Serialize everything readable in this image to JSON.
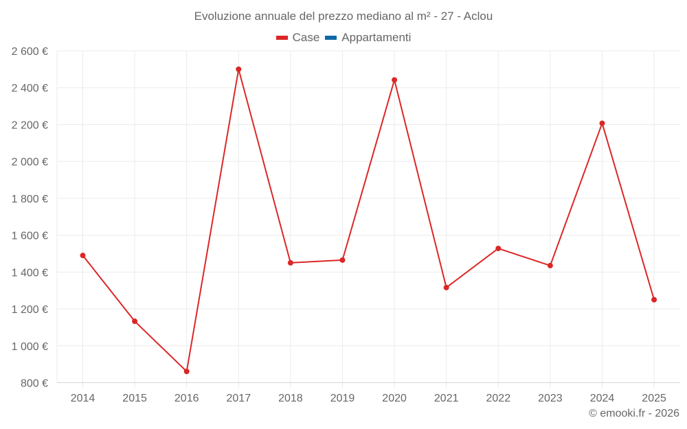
{
  "chart": {
    "title": "Evoluzione annuale del prezzo mediano al m² - 27 - Aclou",
    "credit": "© emooki.fr - 2026",
    "legend": [
      {
        "label": "Case",
        "color": "#dc2626"
      },
      {
        "label": "Appartamenti",
        "color": "#0f69a8"
      }
    ],
    "y_ticks": [
      "800 €",
      "1 000 €",
      "1 200 €",
      "1 400 €",
      "1 600 €",
      "1 800 €",
      "2 000 €",
      "2 200 €",
      "2 400 €",
      "2 600 €"
    ]
  },
  "chart_data": {
    "type": "line",
    "title": "Evoluzione annuale del prezzo mediano al m² - 27 - Aclou",
    "xlabel": "",
    "ylabel": "",
    "categories": [
      "2014",
      "2015",
      "2016",
      "2017",
      "2018",
      "2019",
      "2020",
      "2021",
      "2022",
      "2023",
      "2024",
      "2025"
    ],
    "series": [
      {
        "name": "Case",
        "color": "#dc2626",
        "values": [
          1490,
          1133,
          861,
          2500,
          1450,
          1465,
          2442,
          1316,
          1528,
          1435,
          2207,
          1250
        ]
      },
      {
        "name": "Appartamenti",
        "color": "#0f69a8",
        "values": []
      }
    ],
    "ylim": [
      800,
      2600
    ],
    "y_tick_step": 200,
    "y_tick_format": "€ with thin-space thousands",
    "grid": true,
    "legend_position": "top-center",
    "annotations": [
      "© emooki.fr - 2026"
    ]
  }
}
